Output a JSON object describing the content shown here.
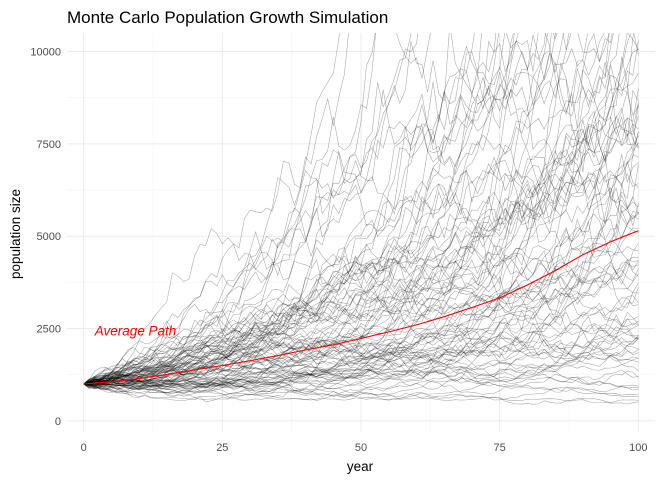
{
  "chart_data": {
    "type": "line",
    "title": "Monte Carlo Population Growth Simulation",
    "xlabel": "year",
    "ylabel": "population size",
    "xlim": [
      -3,
      103
    ],
    "ylim": [
      -300,
      10500
    ],
    "x_ticks": [
      0,
      25,
      50,
      75,
      100
    ],
    "y_ticks": [
      0,
      2500,
      5000,
      7500,
      10000
    ],
    "grid": true,
    "simulation": {
      "paths": 100,
      "start_year": 0,
      "end_year": 100,
      "start_value": 1000,
      "path_color": "#000000",
      "path_opacity": 0.35
    },
    "series": [
      {
        "name": "Average Path",
        "color": "#ff0000",
        "x": [
          0,
          5,
          10,
          15,
          20,
          25,
          30,
          35,
          40,
          45,
          50,
          55,
          60,
          65,
          70,
          75,
          80,
          85,
          90,
          95,
          100
        ],
        "values": [
          1000,
          1060,
          1150,
          1260,
          1380,
          1500,
          1630,
          1770,
          1920,
          2060,
          2230,
          2410,
          2600,
          2820,
          3070,
          3330,
          3680,
          4070,
          4500,
          4850,
          5150
        ]
      }
    ],
    "annotations": [
      {
        "text": "Average Path",
        "x": 2,
        "y": 2450,
        "color": "#ff0000"
      }
    ]
  }
}
